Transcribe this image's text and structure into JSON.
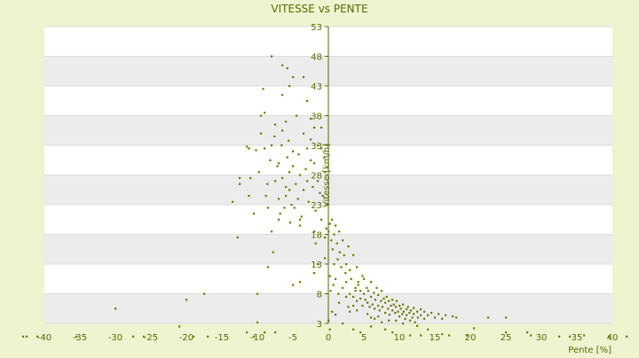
{
  "chart_data": {
    "type": "scatter",
    "title": "VITESSE vs PENTE",
    "xlabel": "Pente [%]",
    "ylabel": "Vitesse [km/h]",
    "xlim": [
      -40,
      40
    ],
    "ylim": [
      3,
      53
    ],
    "xticks": [
      -40,
      -35,
      -30,
      -25,
      -20,
      -15,
      -10,
      -5,
      0,
      5,
      10,
      15,
      20,
      25,
      30,
      35,
      40
    ],
    "yticks": [
      3,
      8,
      13,
      18,
      23,
      28,
      33,
      38,
      43,
      48,
      53
    ],
    "grid": true,
    "band_color": "#ececec",
    "point_color": "#6b7a00",
    "text_color": "#5a6a00",
    "series": [
      {
        "points": [
          [
            -43,
            0.8
          ],
          [
            -42.5,
            0.8
          ],
          [
            -41,
            0.8
          ],
          [
            -35.5,
            0.8
          ],
          [
            -27.5,
            0.8
          ],
          [
            -26,
            0.8
          ],
          [
            -19,
            0.8
          ],
          [
            -17,
            0.8
          ],
          [
            -10.5,
            0.8
          ],
          [
            -30,
            5.5
          ],
          [
            -20,
            7.0
          ],
          [
            -17.5,
            8.0
          ],
          [
            -21,
            2.5
          ],
          [
            -11.5,
            1.5
          ],
          [
            -9,
            1.5
          ],
          [
            -7.5,
            1.5
          ],
          [
            -10,
            3.2
          ],
          [
            -10,
            8.0
          ],
          [
            -5,
            9.5
          ],
          [
            -13.5,
            23.5
          ],
          [
            -12.8,
            17.5
          ],
          [
            -12.5,
            26.5
          ],
          [
            -12.5,
            27.5
          ],
          [
            -11.5,
            32.8
          ],
          [
            -11.2,
            32.5
          ],
          [
            -11,
            27.5
          ],
          [
            -11.2,
            24.5
          ],
          [
            -10.5,
            21.5
          ],
          [
            -10.2,
            32.2
          ],
          [
            -9.8,
            28.5
          ],
          [
            -9.5,
            35.0
          ],
          [
            -9.5,
            38.0
          ],
          [
            -9.2,
            42.5
          ],
          [
            -9.0,
            38.5
          ],
          [
            -9.0,
            32.5
          ],
          [
            -8.8,
            24.5
          ],
          [
            -8.6,
            26.5
          ],
          [
            -8.5,
            22.5
          ],
          [
            -8.2,
            30.5
          ],
          [
            -8.0,
            33.0
          ],
          [
            -8.0,
            18.5
          ],
          [
            -7.8,
            15.0
          ],
          [
            -7.6,
            34.5
          ],
          [
            -7.5,
            36.5
          ],
          [
            -7.5,
            27.0
          ],
          [
            -7.2,
            29.5
          ],
          [
            -7.0,
            24.0
          ],
          [
            -7.0,
            30.0
          ],
          [
            -6.8,
            21.5
          ],
          [
            -6.6,
            33.0
          ],
          [
            -6.5,
            35.5
          ],
          [
            -6.5,
            27.5
          ],
          [
            -6.2,
            22.5
          ],
          [
            -6.0,
            26.0
          ],
          [
            -6.0,
            24.5
          ],
          [
            -5.8,
            31.0
          ],
          [
            -5.6,
            33.8
          ],
          [
            -5.5,
            28.5
          ],
          [
            -5.4,
            20.0
          ],
          [
            -5.2,
            23.0
          ],
          [
            -5.0,
            29.5
          ],
          [
            -5.0,
            32.0
          ],
          [
            -4.8,
            22.5
          ],
          [
            -4.6,
            26.5
          ],
          [
            -4.5,
            38.0
          ],
          [
            -4.3,
            24.0
          ],
          [
            -4.2,
            31.5
          ],
          [
            -4.0,
            28.0
          ],
          [
            -4.0,
            19.5
          ],
          [
            -3.8,
            21.0
          ],
          [
            -3.5,
            25.5
          ],
          [
            -3.5,
            35.0
          ],
          [
            -3.2,
            29.0
          ],
          [
            -3.0,
            32.5
          ],
          [
            -3.0,
            27.0
          ],
          [
            -2.8,
            23.5
          ],
          [
            -2.5,
            30.5
          ],
          [
            -2.5,
            34.0
          ],
          [
            -2.2,
            26.0
          ],
          [
            -2.0,
            30.0
          ],
          [
            -2.0,
            18.5
          ],
          [
            -1.8,
            22.0
          ],
          [
            -1.5,
            27.0
          ],
          [
            -1.5,
            33.0
          ],
          [
            -1.2,
            25.0
          ],
          [
            -1.0,
            36.0
          ],
          [
            -1.0,
            20.5
          ],
          [
            -0.8,
            24.5
          ],
          [
            -0.6,
            31.0
          ],
          [
            -0.5,
            28.5
          ],
          [
            -0.3,
            19.0
          ],
          [
            -8.0,
            48.0
          ],
          [
            -6.5,
            46.5
          ],
          [
            -5.8,
            46.0
          ],
          [
            -6.5,
            41.5
          ],
          [
            -5.5,
            43.0
          ],
          [
            -5.0,
            44.5
          ],
          [
            -3.5,
            44.5
          ],
          [
            -2.5,
            37.5
          ],
          [
            -3.0,
            40.5
          ],
          [
            -6.0,
            37.0
          ],
          [
            -4.0,
            20.5
          ],
          [
            -5.5,
            25.5
          ],
          [
            -2.0,
            36.0
          ],
          [
            -1.0,
            32.5
          ],
          [
            -7.0,
            20.5
          ],
          [
            -8.5,
            12.5
          ],
          [
            -4.0,
            10.0
          ],
          [
            -2.0,
            11.5
          ],
          [
            -1.5,
            13.0
          ],
          [
            -0.5,
            14.0
          ],
          [
            -1.8,
            16.5
          ],
          [
            -0.5,
            17.5
          ],
          [
            0.0,
            18.5
          ],
          [
            0.2,
            19.8
          ],
          [
            0.4,
            17.0
          ],
          [
            0.5,
            20.5
          ],
          [
            0.6,
            15.5
          ],
          [
            0.8,
            18.0
          ],
          [
            1.0,
            19.5
          ],
          [
            1.2,
            16.5
          ],
          [
            1.3,
            13.8
          ],
          [
            1.5,
            18.5
          ],
          [
            1.6,
            15.0
          ],
          [
            1.8,
            12.5
          ],
          [
            2.0,
            17.0
          ],
          [
            2.2,
            14.5
          ],
          [
            2.4,
            11.5
          ],
          [
            2.5,
            13.0
          ],
          [
            2.8,
            16.0
          ],
          [
            3.0,
            12.0
          ],
          [
            3.2,
            10.5
          ],
          [
            3.5,
            14.5
          ],
          [
            3.8,
            9.0
          ],
          [
            4.0,
            12.5
          ],
          [
            4.2,
            10.0
          ],
          [
            4.5,
            8.5
          ],
          [
            4.8,
            11.0
          ],
          [
            0.3,
            8.5
          ],
          [
            0.7,
            9.5
          ],
          [
            1.0,
            10.5
          ],
          [
            1.4,
            8.0
          ],
          [
            2.0,
            9.0
          ],
          [
            0.5,
            5.0
          ],
          [
            1.5,
            6.5
          ],
          [
            2.5,
            7.5
          ],
          [
            0.2,
            11.0
          ],
          [
            0.8,
            13.0
          ],
          [
            0.2,
            2.0
          ],
          [
            0.0,
            3.5
          ],
          [
            1.0,
            4.5
          ],
          [
            2.0,
            3.0
          ],
          [
            3.0,
            5.0
          ],
          [
            3.5,
            6.0
          ],
          [
            3.5,
            2.0
          ],
          [
            4.5,
            1.5
          ],
          [
            6.0,
            2.5
          ],
          [
            7.5,
            3.2
          ],
          [
            3.5,
            7.5
          ],
          [
            3.8,
            8.5
          ],
          [
            4.0,
            6.8
          ],
          [
            4.2,
            9.5
          ],
          [
            4.5,
            7.2
          ],
          [
            4.8,
            6.0
          ],
          [
            5.0,
            8.0
          ],
          [
            5.0,
            10.5
          ],
          [
            5.2,
            7.0
          ],
          [
            5.4,
            9.0
          ],
          [
            5.5,
            6.5
          ],
          [
            5.6,
            8.5
          ],
          [
            5.8,
            5.8
          ],
          [
            6.0,
            7.5
          ],
          [
            6.0,
            10.0
          ],
          [
            6.2,
            6.2
          ],
          [
            6.4,
            8.2
          ],
          [
            6.5,
            5.5
          ],
          [
            6.6,
            7.0
          ],
          [
            6.8,
            9.0
          ],
          [
            7.0,
            6.0
          ],
          [
            7.0,
            7.8
          ],
          [
            7.2,
            5.2
          ],
          [
            7.4,
            6.8
          ],
          [
            7.5,
            8.5
          ],
          [
            7.6,
            5.8
          ],
          [
            7.8,
            7.2
          ],
          [
            8.0,
            6.5
          ],
          [
            8.0,
            4.8
          ],
          [
            8.2,
            7.5
          ],
          [
            8.4,
            5.5
          ],
          [
            8.5,
            6.8
          ],
          [
            8.6,
            4.5
          ],
          [
            8.8,
            6.0
          ],
          [
            9.0,
            7.0
          ],
          [
            9.0,
            5.2
          ],
          [
            9.2,
            6.2
          ],
          [
            9.4,
            4.8
          ],
          [
            9.5,
            5.8
          ],
          [
            9.6,
            6.8
          ],
          [
            9.8,
            5.0
          ],
          [
            10.0,
            6.0
          ],
          [
            10.0,
            4.2
          ],
          [
            10.2,
            5.5
          ],
          [
            10.4,
            4.6
          ],
          [
            10.5,
            6.2
          ],
          [
            10.6,
            5.0
          ],
          [
            10.8,
            3.8
          ],
          [
            11.0,
            5.4
          ],
          [
            11.0,
            4.4
          ],
          [
            11.2,
            5.8
          ],
          [
            11.4,
            4.8
          ],
          [
            11.5,
            3.5
          ],
          [
            11.6,
            5.2
          ],
          [
            11.8,
            4.0
          ],
          [
            12.0,
            5.6
          ],
          [
            12.0,
            4.6
          ],
          [
            12.2,
            3.2
          ],
          [
            12.5,
            5.0
          ],
          [
            12.6,
            4.0
          ],
          [
            13.0,
            5.4
          ],
          [
            13.0,
            4.4
          ],
          [
            13.5,
            3.8
          ],
          [
            13.5,
            5.0
          ],
          [
            14.0,
            4.4
          ],
          [
            14.5,
            4.8
          ],
          [
            15.0,
            4.0
          ],
          [
            15.5,
            4.6
          ],
          [
            16.0,
            3.8
          ],
          [
            16.5,
            4.4
          ],
          [
            17.5,
            4.2
          ],
          [
            18.0,
            4.0
          ],
          [
            22.5,
            4.0
          ],
          [
            25.0,
            4.0
          ],
          [
            14.0,
            2.0
          ],
          [
            17.0,
            1.0
          ],
          [
            19.5,
            1.0
          ],
          [
            20.5,
            2.2
          ],
          [
            25.0,
            1.5
          ],
          [
            28.0,
            1.5
          ],
          [
            28.5,
            1.0
          ],
          [
            32.5,
            0.8
          ],
          [
            34.0,
            0.8
          ],
          [
            36.0,
            1.0
          ],
          [
            39.5,
            0.8
          ],
          [
            42.0,
            0.8
          ],
          [
            13.0,
            1.0
          ],
          [
            16.0,
            1.2
          ],
          [
            9.0,
            1.5
          ],
          [
            11.5,
            1.0
          ],
          [
            8.0,
            2.0
          ],
          [
            6.0,
            4.0
          ],
          [
            4.0,
            5.2
          ],
          [
            5.5,
            4.6
          ],
          [
            6.5,
            3.8
          ],
          [
            7.0,
            4.2
          ],
          [
            2.8,
            5.8
          ],
          [
            3.0,
            8.0
          ],
          [
            2.5,
            10.0
          ],
          [
            9.5,
            3.5
          ],
          [
            10.5,
            3.0
          ],
          [
            12.5,
            2.6
          ],
          [
            8.5,
            3.5
          ]
        ]
      }
    ]
  }
}
